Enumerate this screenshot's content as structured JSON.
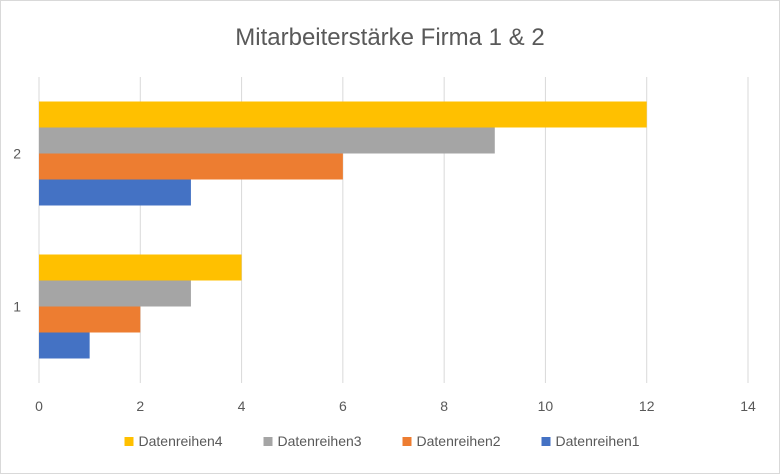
{
  "chart_data": {
    "type": "bar",
    "orientation": "horizontal",
    "title": "Mitarbeiterstärke Firma 1 & 2",
    "categories": [
      "1",
      "2"
    ],
    "series": [
      {
        "name": "Datenreihen1",
        "values": [
          1,
          3
        ],
        "color": "#4472c4"
      },
      {
        "name": "Datenreihen2",
        "values": [
          2,
          6
        ],
        "color": "#ed7d31"
      },
      {
        "name": "Datenreihen3",
        "values": [
          3,
          9
        ],
        "color": "#a5a5a5"
      },
      {
        "name": "Datenreihen4",
        "values": [
          4,
          12
        ],
        "color": "#ffc000"
      }
    ],
    "xlim": [
      0,
      14
    ],
    "xticks": [
      "0",
      "2",
      "4",
      "6",
      "8",
      "10",
      "12",
      "14"
    ],
    "grid": true,
    "legend": "bottom",
    "legend_order": [
      "Datenreihen4",
      "Datenreihen3",
      "Datenreihen2",
      "Datenreihen1"
    ]
  }
}
